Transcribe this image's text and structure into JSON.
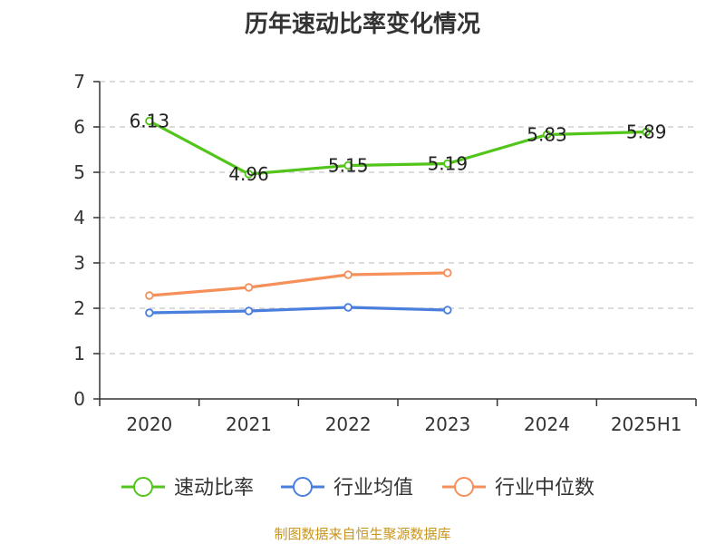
{
  "chart_data": {
    "type": "line",
    "title": "历年速动比率变化情况",
    "categories": [
      "2020",
      "2021",
      "2022",
      "2023",
      "2024",
      "2025H1"
    ],
    "y_ticks": [
      "0",
      "1",
      "2",
      "3",
      "4",
      "5",
      "6",
      "7"
    ],
    "ylim": [
      0,
      7
    ],
    "grid": true,
    "legend_position": "bottom",
    "series": [
      {
        "name": "速动比率",
        "color": "#52c41a",
        "values": [
          6.13,
          4.96,
          5.15,
          5.19,
          5.83,
          5.89
        ],
        "labels": [
          "6.13",
          "4.96",
          "5.15",
          "5.19",
          "5.83",
          "5.89"
        ],
        "show_labels": true
      },
      {
        "name": "行业均值",
        "color": "#4a7fdd",
        "values": [
          1.9,
          1.94,
          2.02,
          1.96,
          null,
          null
        ],
        "show_labels": false
      },
      {
        "name": "行业中位数",
        "color": "#f5905a",
        "values": [
          2.28,
          2.46,
          2.74,
          2.78,
          null,
          null
        ],
        "show_labels": false
      }
    ]
  },
  "footer": {
    "source": "制图数据来自恒生聚源数据库"
  }
}
